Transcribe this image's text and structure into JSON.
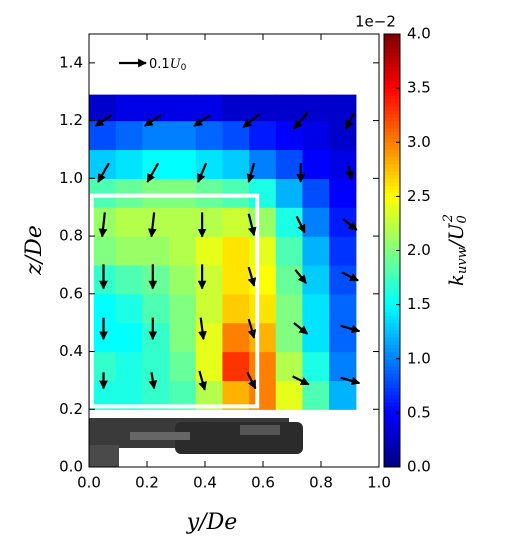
{
  "chart_data": {
    "type": "contour-quiver",
    "xlabel": {
      "base": "y",
      "rest": "/De"
    },
    "ylabel": {
      "base": "z",
      "rest": "/De"
    },
    "xlim": [
      0,
      1.0
    ],
    "ylim": [
      0,
      1.5
    ],
    "xticks": [
      {
        "value": 0,
        "label": "0.0"
      },
      {
        "value": 0.2,
        "label": "0.2"
      },
      {
        "value": 0.4,
        "label": "0.4"
      },
      {
        "value": 0.6,
        "label": "0.6"
      },
      {
        "value": 0.8,
        "label": "0.8"
      },
      {
        "value": 1.0,
        "label": "1.0"
      }
    ],
    "yticks": [
      {
        "value": 0,
        "label": "0.0"
      },
      {
        "value": 0.2,
        "label": "0.2"
      },
      {
        "value": 0.4,
        "label": "0.4"
      },
      {
        "value": 0.6,
        "label": "0.6"
      },
      {
        "value": 0.8,
        "label": "0.8"
      },
      {
        "value": 1.0,
        "label": "1.0"
      },
      {
        "value": 1.2,
        "label": "1.2"
      },
      {
        "value": 1.4,
        "label": "1.4"
      }
    ],
    "colormap": "jet",
    "clim": [
      0,
      4.0
    ],
    "cticks": [
      {
        "value": 0,
        "label": "0.0"
      },
      {
        "value": 0.5,
        "label": "0.5"
      },
      {
        "value": 1.0,
        "label": "1.0"
      },
      {
        "value": 1.5,
        "label": "1.5"
      },
      {
        "value": 2.0,
        "label": "2.0"
      },
      {
        "value": 2.5,
        "label": "2.5"
      },
      {
        "value": 3.0,
        "label": "3.0"
      },
      {
        "value": 3.5,
        "label": "3.5"
      },
      {
        "value": 4.0,
        "label": "4.0"
      }
    ],
    "cbar_multiplier": "1e−2",
    "cbar_label": {
      "base": "k",
      "sub": "uvw",
      "div": "/U",
      "div_sub": "0",
      "div_sup": "2"
    },
    "field": {
      "x": [
        0,
        0.092,
        0.184,
        0.276,
        0.368,
        0.46,
        0.552,
        0.644,
        0.736,
        0.828,
        0.92
      ],
      "z": [
        0.2,
        0.3,
        0.4,
        0.5,
        0.6,
        0.7,
        0.8,
        0.9,
        1.0,
        1.1,
        1.2,
        1.29
      ],
      "values": [
        [
          1.6,
          1.6,
          1.7,
          1.8,
          2.2,
          2.8,
          3.0,
          2.4,
          1.8,
          1.2
        ],
        [
          1.7,
          1.6,
          1.7,
          1.9,
          2.4,
          3.3,
          3.0,
          2.2,
          1.6,
          1.0
        ],
        [
          1.5,
          1.5,
          1.7,
          2.0,
          2.4,
          3.0,
          2.8,
          2.0,
          1.4,
          0.9
        ],
        [
          1.5,
          1.6,
          1.8,
          2.0,
          2.3,
          2.7,
          2.6,
          2.0,
          1.4,
          0.9
        ],
        [
          1.7,
          1.8,
          1.9,
          2.1,
          2.3,
          2.6,
          2.5,
          1.9,
          1.3,
          0.8
        ],
        [
          2.0,
          2.1,
          2.1,
          2.2,
          2.4,
          2.6,
          2.4,
          1.8,
          1.2,
          0.7
        ],
        [
          2.1,
          2.2,
          2.2,
          2.2,
          2.2,
          2.3,
          2.1,
          1.6,
          1.0,
          0.6
        ],
        [
          1.8,
          1.9,
          2.0,
          2.0,
          1.9,
          1.8,
          1.6,
          1.2,
          0.8,
          0.5
        ],
        [
          1.3,
          1.4,
          1.5,
          1.5,
          1.4,
          1.3,
          1.0,
          0.8,
          0.5,
          0.4
        ],
        [
          0.8,
          0.9,
          1.0,
          1.0,
          0.9,
          0.8,
          0.6,
          0.5,
          0.4,
          0.3
        ],
        [
          0.3,
          0.4,
          0.4,
          0.4,
          0.4,
          0.3,
          0.3,
          0.3,
          0.3,
          0.3
        ]
      ]
    },
    "vectors": {
      "x": [
        0.05,
        0.22,
        0.39,
        0.56,
        0.73,
        0.9
      ],
      "z": [
        0.3,
        0.48,
        0.66,
        0.84,
        1.02,
        1.2
      ],
      "u": [
        [
          0.0,
          0.01,
          0.02,
          0.03,
          0.06,
          0.07
        ],
        [
          0.0,
          0.0,
          0.01,
          0.02,
          0.05,
          0.07
        ],
        [
          0.0,
          0.0,
          0.0,
          0.02,
          0.04,
          0.06
        ],
        [
          -0.01,
          -0.01,
          0.0,
          0.02,
          0.03,
          0.05
        ],
        [
          -0.04,
          -0.04,
          -0.03,
          -0.02,
          0.0,
          0.01
        ],
        [
          -0.06,
          -0.06,
          -0.06,
          -0.06,
          -0.05,
          -0.03
        ]
      ],
      "w": [
        [
          -0.06,
          -0.06,
          -0.07,
          -0.06,
          -0.03,
          -0.02
        ],
        [
          -0.08,
          -0.08,
          -0.08,
          -0.07,
          -0.04,
          -0.02
        ],
        [
          -0.09,
          -0.09,
          -0.09,
          -0.07,
          -0.05,
          -0.03
        ],
        [
          -0.09,
          -0.09,
          -0.09,
          -0.08,
          -0.06,
          -0.04
        ],
        [
          -0.07,
          -0.07,
          -0.07,
          -0.07,
          -0.07,
          -0.05
        ],
        [
          -0.04,
          -0.04,
          -0.04,
          -0.05,
          -0.06,
          -0.06
        ]
      ]
    },
    "quiver_key": {
      "value": 0.1,
      "unit": "U",
      "unit_sub": "0"
    },
    "highlight_box": {
      "x": [
        0.01,
        0.58
      ],
      "z": [
        0.21,
        0.94
      ]
    }
  }
}
